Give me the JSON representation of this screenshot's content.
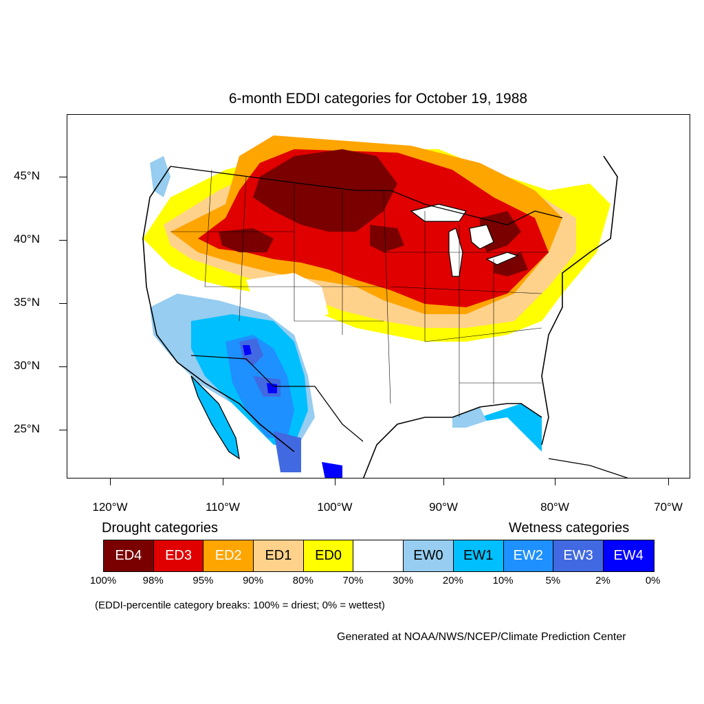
{
  "title": "6-month EDDI categories for October 19, 1988",
  "map": {
    "lat_labels": [
      "45°N",
      "40°N",
      "35°N",
      "30°N",
      "25°N"
    ],
    "lon_labels": [
      "120°W",
      "110°W",
      "100°W",
      "90°W",
      "80°W",
      "70°W"
    ],
    "ocean_color": "#ffffff",
    "outline_color": "#000000"
  },
  "legend": {
    "drought_heading": "Drought categories",
    "wetness_heading": "Wetness categories",
    "categories": [
      {
        "label": "ED4",
        "color": "#7a0000",
        "text_color": "#ffffff"
      },
      {
        "label": "ED3",
        "color": "#e00000",
        "text_color": "#ffffff"
      },
      {
        "label": "ED2",
        "color": "#ffa500",
        "text_color": "#ffffff"
      },
      {
        "label": "ED1",
        "color": "#ffd28c",
        "text_color": "#000000"
      },
      {
        "label": "ED0",
        "color": "#ffff00",
        "text_color": "#000000"
      },
      {
        "label": "",
        "color": "#ffffff",
        "text_color": "#000000"
      },
      {
        "label": "EW0",
        "color": "#96cdf0",
        "text_color": "#000000"
      },
      {
        "label": "EW1",
        "color": "#00bfff",
        "text_color": "#000000"
      },
      {
        "label": "EW2",
        "color": "#1e90ff",
        "text_color": "#ffffff"
      },
      {
        "label": "EW3",
        "color": "#4169e1",
        "text_color": "#ffffff"
      },
      {
        "label": "EW4",
        "color": "#0000ff",
        "text_color": "#ffffff"
      }
    ],
    "percentiles": [
      "100%",
      "98%",
      "95%",
      "90%",
      "80%",
      "70%",
      "30%",
      "20%",
      "10%",
      "5%",
      "2%",
      "0%"
    ]
  },
  "note": "(EDDI-percentile category breaks: 100% = driest; 0% = wettest)",
  "credit": "Generated at NOAA/NWS/NCEP/Climate Prediction Center"
}
